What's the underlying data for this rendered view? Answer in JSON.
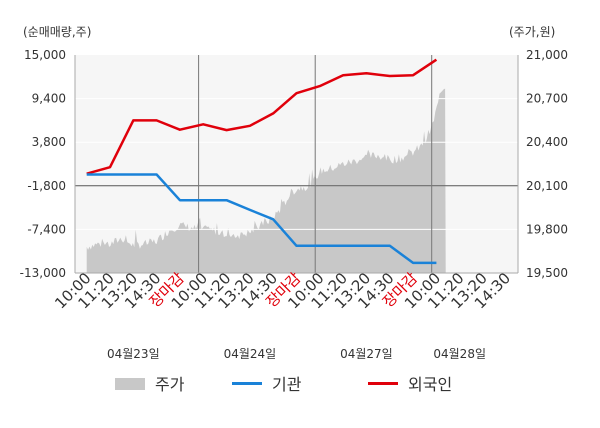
{
  "chart_data": {
    "type": "line",
    "left_axis_unit": "(순매매량,주)",
    "right_axis_unit": "(주가,원)",
    "left_ticks": [
      "15,000",
      "9,400",
      "3,800",
      "-1,800",
      "-7,400",
      "-13,000"
    ],
    "left_tick_values": [
      15000,
      9400,
      3800,
      -1800,
      -7400,
      -13000
    ],
    "right_ticks": [
      "21,000",
      "20,700",
      "20,400",
      "20,100",
      "19,800",
      "19,500"
    ],
    "right_tick_values": [
      21000,
      20700,
      20400,
      20100,
      19800,
      19500
    ],
    "ylim_left": [
      -13000,
      15000
    ],
    "ylim_right": [
      19500,
      21000
    ],
    "x_tick_labels": [
      {
        "text": "10:00",
        "color": "#333333"
      },
      {
        "text": "11:20",
        "color": "#333333"
      },
      {
        "text": "13:20",
        "color": "#333333"
      },
      {
        "text": "14:30",
        "color": "#333333"
      },
      {
        "text": "장마감",
        "color": "#e0000b"
      },
      {
        "text": "10:00",
        "color": "#333333"
      },
      {
        "text": "11:20",
        "color": "#333333"
      },
      {
        "text": "13:20",
        "color": "#333333"
      },
      {
        "text": "14:30",
        "color": "#333333"
      },
      {
        "text": "장마감",
        "color": "#e0000b"
      },
      {
        "text": "10:00",
        "color": "#333333"
      },
      {
        "text": "11:20",
        "color": "#333333"
      },
      {
        "text": "13:20",
        "color": "#333333"
      },
      {
        "text": "14:30",
        "color": "#333333"
      },
      {
        "text": "장마감",
        "color": "#e0000b"
      },
      {
        "text": "10:00",
        "color": "#333333"
      },
      {
        "text": "11:20",
        "color": "#333333"
      },
      {
        "text": "13:20",
        "color": "#333333"
      },
      {
        "text": "14:30",
        "color": "#333333"
      }
    ],
    "date_labels": [
      {
        "text": "04월23일",
        "slot": 2
      },
      {
        "text": "04월24일",
        "slot": 7
      },
      {
        "text": "04월27일",
        "slot": 12
      },
      {
        "text": "04월28일",
        "slot": 16
      }
    ],
    "day_dividers": [
      4.8,
      9.8,
      14.8
    ],
    "zero_line_value": -1800,
    "series": [
      {
        "name": "외국인",
        "color": "#e0000b",
        "axis": "left",
        "points": [
          [
            0,
            -240
          ],
          [
            1,
            590
          ],
          [
            2,
            6600
          ],
          [
            3,
            6600
          ],
          [
            4,
            5400
          ],
          [
            5,
            6100
          ],
          [
            6,
            5350
          ],
          [
            7,
            5900
          ],
          [
            8,
            7500
          ],
          [
            9,
            10100
          ],
          [
            10,
            11000
          ],
          [
            11,
            12400
          ],
          [
            12,
            12650
          ],
          [
            13,
            12300
          ],
          [
            14,
            12400
          ],
          [
            15,
            14400
          ]
        ]
      },
      {
        "name": "기관",
        "color": "#1a82d8",
        "axis": "left",
        "points": [
          [
            0,
            -350
          ],
          [
            1,
            -350
          ],
          [
            2,
            -350
          ],
          [
            3,
            -350
          ],
          [
            4,
            -3650
          ],
          [
            5,
            -3650
          ],
          [
            6,
            -3650
          ],
          [
            7,
            -4900
          ],
          [
            8,
            -6100
          ],
          [
            9,
            -9500
          ],
          [
            10,
            -9500
          ],
          [
            11,
            -9500
          ],
          [
            12,
            -9500
          ],
          [
            13,
            -9500
          ],
          [
            14,
            -11700
          ],
          [
            15,
            -11700
          ]
        ]
      },
      {
        "name": "주가",
        "color": "#c8c8c8",
        "axis": "right",
        "type": "area",
        "keypoints": [
          [
            0,
            19680
          ],
          [
            0.5,
            19700
          ],
          [
            1,
            19695
          ],
          [
            1.5,
            19740
          ],
          [
            2,
            19690
          ],
          [
            2.5,
            19700
          ],
          [
            3,
            19720
          ],
          [
            3.3,
            19760
          ],
          [
            3.6,
            19800
          ],
          [
            4,
            19830
          ],
          [
            4.5,
            19810
          ],
          [
            5,
            19800
          ],
          [
            5.5,
            19790
          ],
          [
            6,
            19770
          ],
          [
            6.5,
            19760
          ],
          [
            7,
            19780
          ],
          [
            7.5,
            19830
          ],
          [
            8,
            19880
          ],
          [
            8.4,
            19960
          ],
          [
            8.8,
            20060
          ],
          [
            9.2,
            20090
          ],
          [
            9.6,
            20100
          ],
          [
            10,
            20200
          ],
          [
            10.5,
            20220
          ],
          [
            11,
            20250
          ],
          [
            11.5,
            20270
          ],
          [
            12,
            20300
          ],
          [
            12.5,
            20310
          ],
          [
            13,
            20280
          ],
          [
            13.5,
            20290
          ],
          [
            14,
            20330
          ],
          [
            14.4,
            20380
          ],
          [
            14.8,
            20500
          ],
          [
            15.2,
            20750
          ],
          [
            15.4,
            20790
          ]
        ]
      }
    ]
  },
  "legend": [
    {
      "label": "주가",
      "color": "#c8c8c8",
      "kind": "box"
    },
    {
      "label": "기관",
      "color": "#1a82d8",
      "kind": "line"
    },
    {
      "label": "외국인",
      "color": "#e0000b",
      "kind": "line"
    }
  ]
}
